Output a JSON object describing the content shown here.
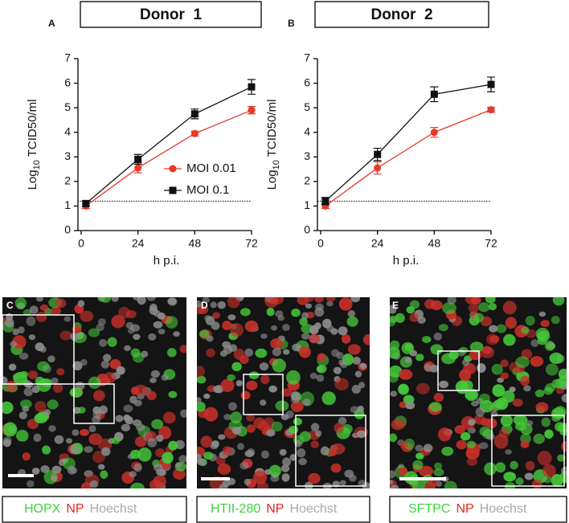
{
  "chart_data": [
    {
      "type": "line",
      "panel": "A",
      "title": "Donor  1",
      "x": [
        2,
        24,
        48,
        72
      ],
      "xlim": [
        0,
        72
      ],
      "xticks": [
        0,
        24,
        48,
        72
      ],
      "ylim": [
        0,
        7
      ],
      "yticks": [
        0,
        1,
        2,
        3,
        4,
        5,
        6,
        7
      ],
      "xlabel": "h p.i.",
      "ylabel": {
        "base": "Log",
        "subscript": "10",
        "unit": " TCID50/ml"
      },
      "detection_limit": 1.2,
      "legend": "center-right",
      "series": [
        {
          "name": "MOI 0.01",
          "color": "#e8382a",
          "marker": "circle",
          "values": [
            1.0,
            2.55,
            3.95,
            4.9
          ],
          "errors": [
            0.1,
            0.2,
            0.1,
            0.15
          ]
        },
        {
          "name": "MOI 0.1",
          "color": "#111111",
          "marker": "square",
          "values": [
            1.1,
            2.9,
            4.75,
            5.85
          ],
          "errors": [
            0.1,
            0.2,
            0.2,
            0.3
          ]
        }
      ]
    },
    {
      "type": "line",
      "panel": "B",
      "title": "Donor  2",
      "x": [
        2,
        24,
        48,
        72
      ],
      "xlim": [
        0,
        72
      ],
      "xticks": [
        0,
        24,
        48,
        72
      ],
      "ylim": [
        0,
        7
      ],
      "yticks": [
        0,
        1,
        2,
        3,
        4,
        5,
        6,
        7
      ],
      "xlabel": "h p.i.",
      "ylabel": {
        "base": "Log",
        "subscript": "10",
        "unit": " TCID50/ml"
      },
      "detection_limit": 1.2,
      "series": [
        {
          "color": "#e8382a",
          "marker": "circle",
          "values": [
            1.0,
            2.55,
            4.0,
            4.92
          ],
          "errors": [
            0.1,
            0.25,
            0.2,
            0.1
          ]
        },
        {
          "color": "#111111",
          "marker": "square",
          "values": [
            1.2,
            3.1,
            5.55,
            5.95
          ],
          "errors": [
            0.15,
            0.25,
            0.3,
            0.3
          ]
        }
      ]
    }
  ],
  "images": [
    {
      "panel": "C",
      "stains": [
        {
          "text": "HOPX",
          "color": "#3fd33f"
        },
        {
          "text": "NP",
          "color": "#e8261e"
        },
        {
          "text": "Hoechst",
          "color": "#aaaaaa"
        }
      ]
    },
    {
      "panel": "D",
      "stains": [
        {
          "text": "HTII-280",
          "color": "#3fd33f"
        },
        {
          "text": "NP",
          "color": "#e8261e"
        },
        {
          "text": "Hoechst",
          "color": "#aaaaaa"
        }
      ]
    },
    {
      "panel": "E",
      "stains": [
        {
          "text": "SFTPC",
          "color": "#3fd33f"
        },
        {
          "text": "NP",
          "color": "#e8261e"
        },
        {
          "text": "Hoechst",
          "color": "#aaaaaa"
        }
      ]
    }
  ]
}
